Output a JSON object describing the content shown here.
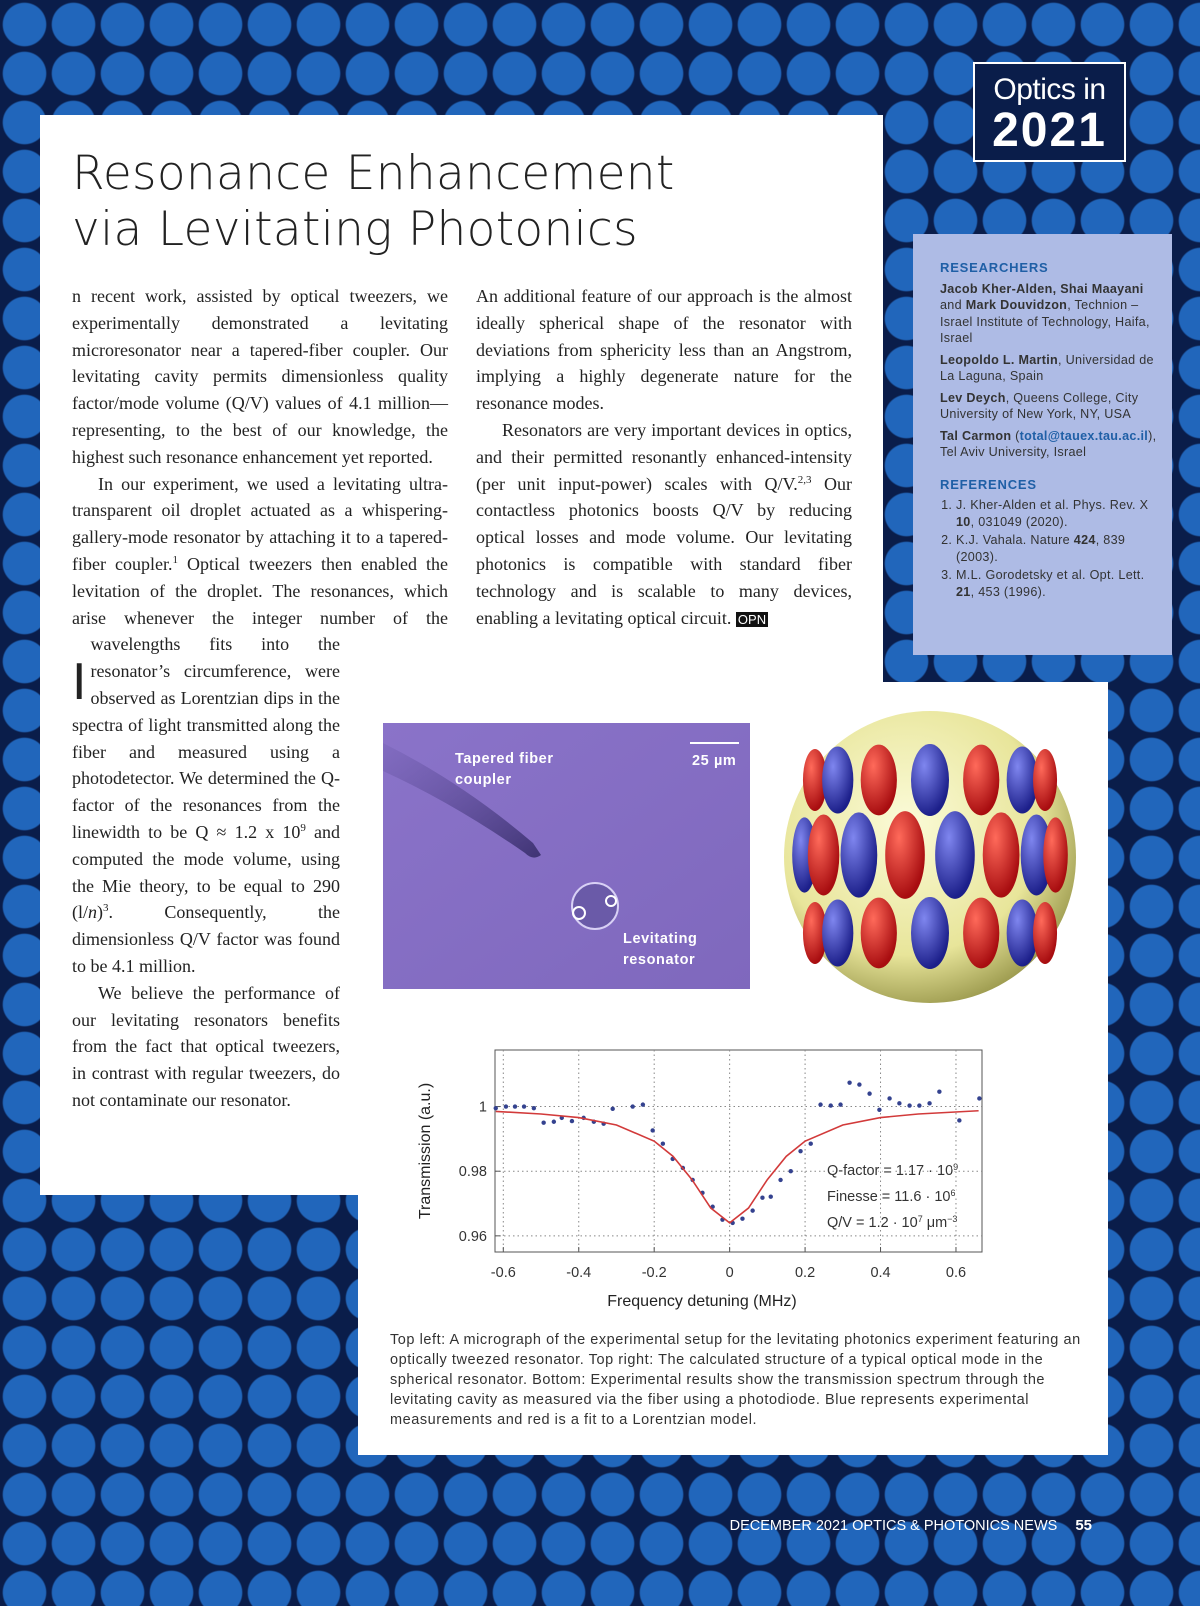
{
  "badge": {
    "line1": "Optics in",
    "line2": "2021"
  },
  "title": [
    "Resonance Enhancement",
    "via Levitating Photonics"
  ],
  "body": {
    "left": [
      [
        "I",
        "n recent work, assisted by optical tweezers, we experimentally demonstrated a levitating microresonator near a tapered-fiber coupler. Our levitating cavity permits dimensionless quality factor/mode volume (Q/V) values of 4.1 million—representing, to the best of our knowledge, the highest such resonance enhancement yet reported."
      ],
      [
        "In our experiment, we used a levitating ultra-transparent oil droplet actuated as a whispering-gallery-mode resonator by attaching it to a tapered-fiber coupler.",
        "1",
        " Optical tweezers then enabled the levitation of the droplet. The resonances, which arise whenever the integer number of the wavelengths fits into the resonator’s circumference, were observed as Lorentzian dips in the spectra of light transmitted along the fiber and measured using a photodetector. We determined the Q-factor of the resonances from the linewidth to be Q ≈ 1.2 x 10",
        "9",
        " and computed the mode volume, using the Mie theory, to be equal to 290 (l/",
        "n",
        ")",
        "3",
        ". Consequently, the dimensionless Q/V factor was found to be 4.1 million."
      ],
      [
        "We believe the performance of our levitating resonators benefits from the fact that optical tweezers, in contrast with regular tweezers, do not contaminate our resonator."
      ]
    ],
    "right": [
      [
        "An additional feature of our approach is the almost ideally spherical shape of the resonator with deviations from sphericity less than an Angstrom, implying a highly degenerate nature for the resonance modes."
      ],
      [
        "Resonators are very important devices in optics, and their permitted resonantly enhanced-intensity (per unit input-power) scales with Q/V.",
        "2,3",
        " Our contactless photonics boosts Q/V by reducing optical losses and mode volume. Our levitating photonics is compatible with standard fiber technology and is scalable to many devices, enabling a levitating optical circuit. ",
        "OPN"
      ]
    ]
  },
  "sidebar": {
    "researchers_heading": "RESEARCHERS",
    "researchers": [
      [
        "Jacob Kher-Alden",
        ", ",
        "Shai Maayani",
        " and ",
        "Mark Douvidzon",
        ", Technion – Israel Institute of Technology, Haifa, Israel"
      ],
      [
        "Leopoldo L. Martin",
        ", Universidad de La Laguna, Spain"
      ],
      [
        "Lev Deych",
        ", Queens College, City University of New York, NY, USA"
      ],
      [
        "Tal Carmon",
        " (",
        "total@tauex.tau.ac.il",
        "), Tel Aviv University, Israel"
      ]
    ],
    "references_heading": "REFERENCES",
    "references": [
      [
        "J. Kher-Alden et al. Phys. Rev. X ",
        "10",
        ", 031049 (2020)."
      ],
      [
        "K.J. Vahala. Nature ",
        "424",
        ", 839 (2003)."
      ],
      [
        "M.L. Gorodetsky et al. Opt. Lett. ",
        "21",
        ", 453 (1996)."
      ]
    ]
  },
  "figure": {
    "micrograph": {
      "fiber_label": "Tapered fiber coupler",
      "scale": "25 µm",
      "resonator_label": "Levitating resonator"
    },
    "caption": "Top left: A micrograph of the experimental setup for the levitating photonics experiment featuring an optically tweezed resonator. Top right: The calculated structure of a typical optical mode in the spherical resonator. Bottom: Experimental results show the transmission spectrum through the levitating cavity as measured via the fiber using a photodiode. Blue represents experimental measurements and red is a fit to a Lorentzian model."
  },
  "chart_data": {
    "type": "scatter",
    "x_label": "Frequency detuning (MHz)",
    "y_label": "Transmission (a.u.)",
    "xlim": [
      -0.622,
      0.669
    ],
    "ylim": [
      0.955,
      1.0175
    ],
    "xticks": [
      -0.6,
      -0.4,
      -0.2,
      0,
      0.2,
      0.4,
      0.6
    ],
    "yticks": [
      0.96,
      0.98,
      1
    ],
    "grid": true,
    "series": [
      {
        "color": "#34428f",
        "x": [
          -0.62,
          -0.593,
          -0.569,
          -0.545,
          -0.519,
          -0.493,
          -0.466,
          -0.445,
          -0.418,
          -0.387,
          -0.36,
          -0.334,
          -0.31,
          -0.257,
          -0.23,
          -0.204,
          -0.177,
          -0.151,
          -0.124,
          -0.098,
          -0.072,
          -0.045,
          -0.019,
          0.008,
          0.034,
          0.061,
          0.087,
          0.109,
          0.135,
          0.162,
          0.188,
          0.215,
          0.241,
          0.268,
          0.294,
          0.318,
          0.344,
          0.371,
          0.397,
          0.424,
          0.45,
          0.477,
          0.503,
          0.53,
          0.556,
          0.609,
          0.662
        ],
        "values": [
          0.9995,
          1,
          1,
          1,
          0.9995,
          0.995,
          0.9953,
          0.9965,
          0.9955,
          0.9965,
          0.9953,
          0.9947,
          0.9993,
          1,
          1.0006,
          0.9926,
          0.9885,
          0.9838,
          0.981,
          0.9773,
          0.9733,
          0.969,
          0.965,
          0.964,
          0.9653,
          0.9678,
          0.9718,
          0.9721,
          0.9773,
          0.98,
          0.9862,
          0.9885,
          1.0006,
          1.0003,
          1.0006,
          1.0074,
          1.0068,
          1.004,
          0.999,
          1.0025,
          1.001,
          1.0003,
          1.0003,
          1.001,
          1.0046,
          0.9957,
          1.0025
        ]
      },
      {
        "color": "#d23a3a",
        "type": "line",
        "x": [
          -0.62,
          -0.5,
          -0.4,
          -0.3,
          -0.2,
          -0.15,
          -0.1,
          -0.05,
          0,
          0.05,
          0.1,
          0.15,
          0.2,
          0.3,
          0.4,
          0.5,
          0.66
        ],
        "values": [
          0.9985,
          0.9977,
          0.9966,
          0.9943,
          0.9893,
          0.9846,
          0.9774,
          0.9686,
          0.964,
          0.9686,
          0.9774,
          0.9846,
          0.9893,
          0.9943,
          0.9966,
          0.9977,
          0.9987
        ]
      }
    ],
    "annotations": [
      [
        "Q-factor = 1.17 · 10",
        "9"
      ],
      [
        "Finesse  = 11.6 · 10",
        "6"
      ],
      [
        "Q/V = 1.2 · 10",
        "7",
        " μm",
        "−3"
      ]
    ]
  },
  "footer": {
    "text": "DECEMBER 2021 OPTICS & PHOTONICS NEWS",
    "page": "55"
  }
}
